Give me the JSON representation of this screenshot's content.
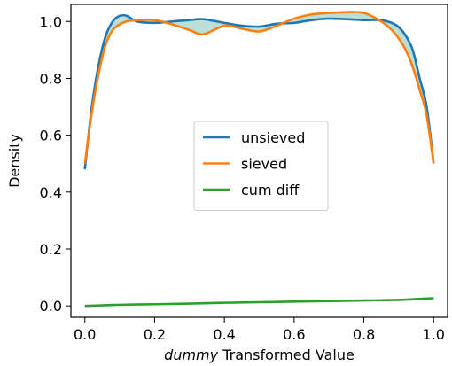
{
  "chart_data": {
    "type": "line",
    "title": "",
    "xlabel_emph": "dummy",
    "xlabel_rest": " Transformed Value",
    "ylabel": "Density",
    "xlim": [
      -0.04,
      1.04
    ],
    "ylim": [
      -0.04,
      1.06
    ],
    "x_ticks": [
      0.0,
      0.2,
      0.4,
      0.6,
      0.8,
      1.0
    ],
    "x_tick_labels": [
      "0.0",
      "0.2",
      "0.4",
      "0.6",
      "0.8",
      "1.0"
    ],
    "y_ticks": [
      0.0,
      0.2,
      0.4,
      0.6,
      0.8,
      1.0
    ],
    "y_tick_labels": [
      "0.0",
      "0.2",
      "0.4",
      "0.6",
      "0.8",
      "1.0"
    ],
    "grid": false,
    "legend_position": "center",
    "fill_between": {
      "series_a": "unsieved",
      "series_b": "sieved",
      "color": "#b3dcd2"
    },
    "series": [
      {
        "name": "unsieved",
        "color": "#1f77b4",
        "x": [
          0.0,
          0.02,
          0.04,
          0.06,
          0.08,
          0.1,
          0.12,
          0.15,
          0.2,
          0.25,
          0.3,
          0.34,
          0.4,
          0.45,
          0.5,
          0.55,
          0.6,
          0.65,
          0.7,
          0.75,
          0.8,
          0.85,
          0.88,
          0.9,
          0.92,
          0.94,
          0.96,
          0.98,
          1.0
        ],
        "y": [
          0.48,
          0.7,
          0.85,
          0.95,
          1.0,
          1.02,
          1.02,
          1.0,
          0.995,
          1.0,
          1.005,
          1.008,
          0.995,
          0.985,
          0.982,
          0.992,
          0.995,
          1.005,
          1.01,
          1.008,
          1.005,
          1.005,
          0.995,
          0.98,
          0.95,
          0.9,
          0.8,
          0.7,
          0.5
        ]
      },
      {
        "name": "sieved",
        "color": "#ff7f0e",
        "x": [
          0.0,
          0.02,
          0.04,
          0.06,
          0.08,
          0.1,
          0.12,
          0.15,
          0.2,
          0.25,
          0.3,
          0.34,
          0.4,
          0.45,
          0.5,
          0.55,
          0.6,
          0.65,
          0.7,
          0.75,
          0.8,
          0.85,
          0.88,
          0.9,
          0.92,
          0.94,
          0.96,
          0.98,
          1.0
        ],
        "y": [
          0.5,
          0.68,
          0.82,
          0.92,
          0.97,
          0.99,
          1.0,
          1.005,
          1.005,
          0.99,
          0.97,
          0.955,
          0.985,
          0.975,
          0.965,
          0.985,
          1.01,
          1.025,
          1.03,
          1.033,
          1.03,
          1.0,
          0.97,
          0.94,
          0.9,
          0.84,
          0.76,
          0.67,
          0.5
        ]
      },
      {
        "name": "cum diff",
        "color": "#2ca02c",
        "x": [
          0.0,
          0.05,
          0.1,
          0.2,
          0.3,
          0.4,
          0.5,
          0.6,
          0.7,
          0.8,
          0.9,
          0.95,
          1.0
        ],
        "y": [
          0.0,
          0.002,
          0.004,
          0.006,
          0.008,
          0.011,
          0.013,
          0.015,
          0.017,
          0.019,
          0.021,
          0.024,
          0.027
        ]
      }
    ]
  }
}
